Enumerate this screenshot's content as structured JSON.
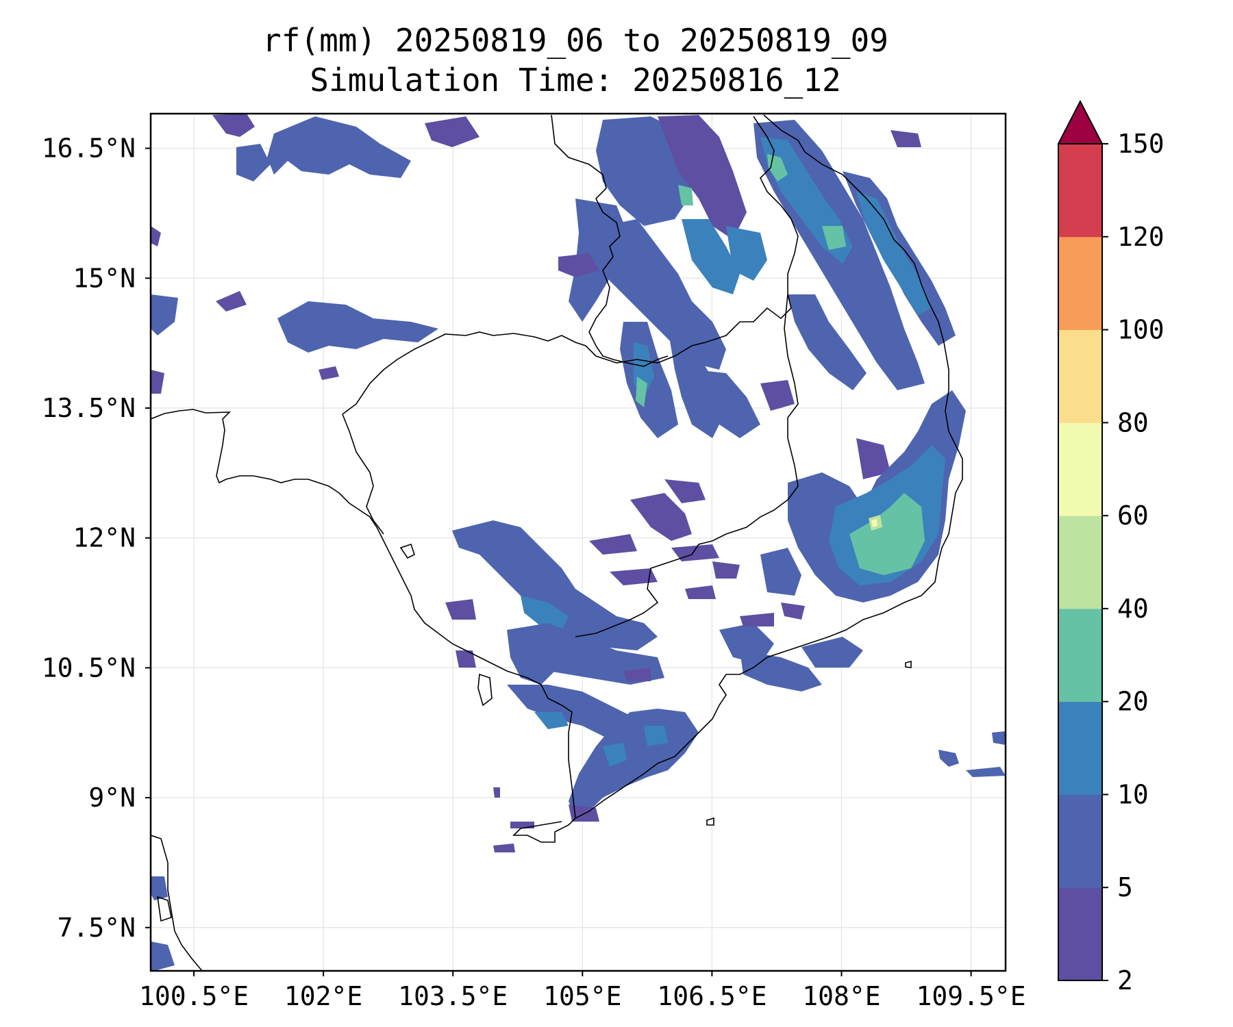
{
  "title": {
    "line1": "rf(mm) 20250819_06 to 20250819_09",
    "line2": "Simulation Time: 20250816_12"
  },
  "map": {
    "variable": "rf(mm)",
    "lon_range": [
      100.0,
      109.9
    ],
    "lat_range": [
      7.0,
      16.9
    ],
    "lon_ticks": [
      {
        "value": 100.5,
        "label": "100.5°E"
      },
      {
        "value": 102.0,
        "label": "102°E"
      },
      {
        "value": 103.5,
        "label": "103.5°E"
      },
      {
        "value": 105.0,
        "label": "105°E"
      },
      {
        "value": 106.5,
        "label": "106.5°E"
      },
      {
        "value": 108.0,
        "label": "108°E"
      },
      {
        "value": 109.5,
        "label": "109.5°E"
      }
    ],
    "lat_ticks": [
      {
        "value": 16.5,
        "label": "16.5°N"
      },
      {
        "value": 15.0,
        "label": "15°N"
      },
      {
        "value": 13.5,
        "label": "13.5°N"
      },
      {
        "value": 12.0,
        "label": "12°N"
      },
      {
        "value": 10.5,
        "label": "10.5°N"
      },
      {
        "value": 9.0,
        "label": "9°N"
      },
      {
        "value": 7.5,
        "label": "7.5°N"
      }
    ],
    "grid": true
  },
  "colorbar": {
    "levels": [
      "2",
      "5",
      "10",
      "20",
      "40",
      "60",
      "80",
      "100",
      "120",
      "150"
    ],
    "colors": [
      "#5e4fa2",
      "#4e64af",
      "#3b82bc",
      "#66c2a5",
      "#bde3a0",
      "#f3fbb0",
      "#fbde8c",
      "#f89d59",
      "#d53e4f"
    ],
    "extend_color": "#9e0142",
    "extend": "max"
  },
  "colors": {
    "coastline": "#000000",
    "grid": "#e3e3e3",
    "frame": "#000000"
  }
}
